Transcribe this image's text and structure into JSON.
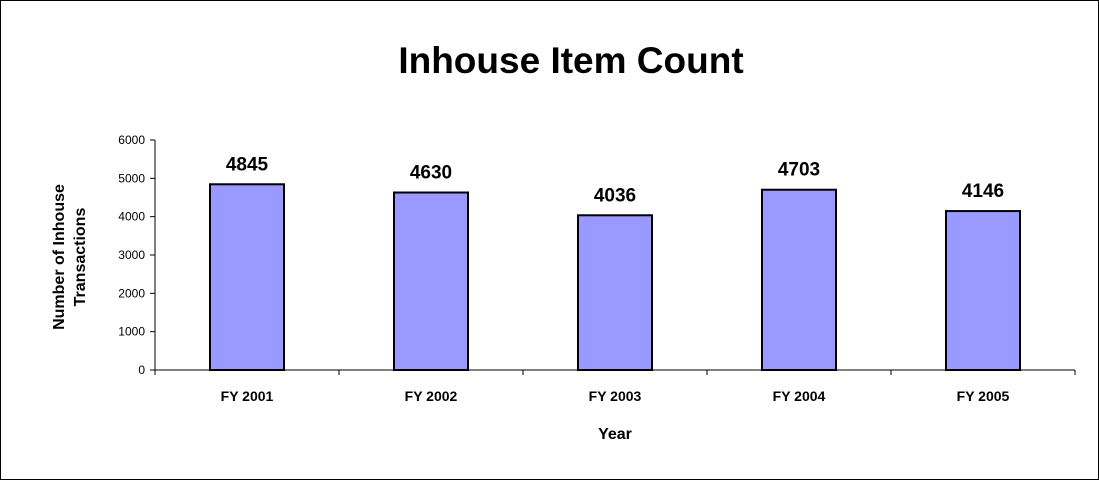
{
  "chart_data": {
    "type": "bar",
    "title": "Inhouse Item Count",
    "xlabel": "Year",
    "ylabel_lines": [
      "Number of Inhouse",
      "Transactions"
    ],
    "categories": [
      "FY 2001",
      "FY 2002",
      "FY 2003",
      "FY 2004",
      "FY 2005"
    ],
    "values": [
      4845,
      4630,
      4036,
      4703,
      4146
    ],
    "data_labels": [
      "4845",
      "4630",
      "4036",
      "4703",
      "4146"
    ],
    "ylim": [
      0,
      6000
    ],
    "yticks": [
      0,
      1000,
      2000,
      3000,
      4000,
      5000,
      6000
    ],
    "ytick_labels": [
      "0",
      "1000",
      "2000",
      "3000",
      "4000",
      "5000",
      "6000"
    ],
    "grid": false,
    "legend": "none",
    "bar_color": "#9999FF",
    "bar_edge_color": "#000000"
  }
}
